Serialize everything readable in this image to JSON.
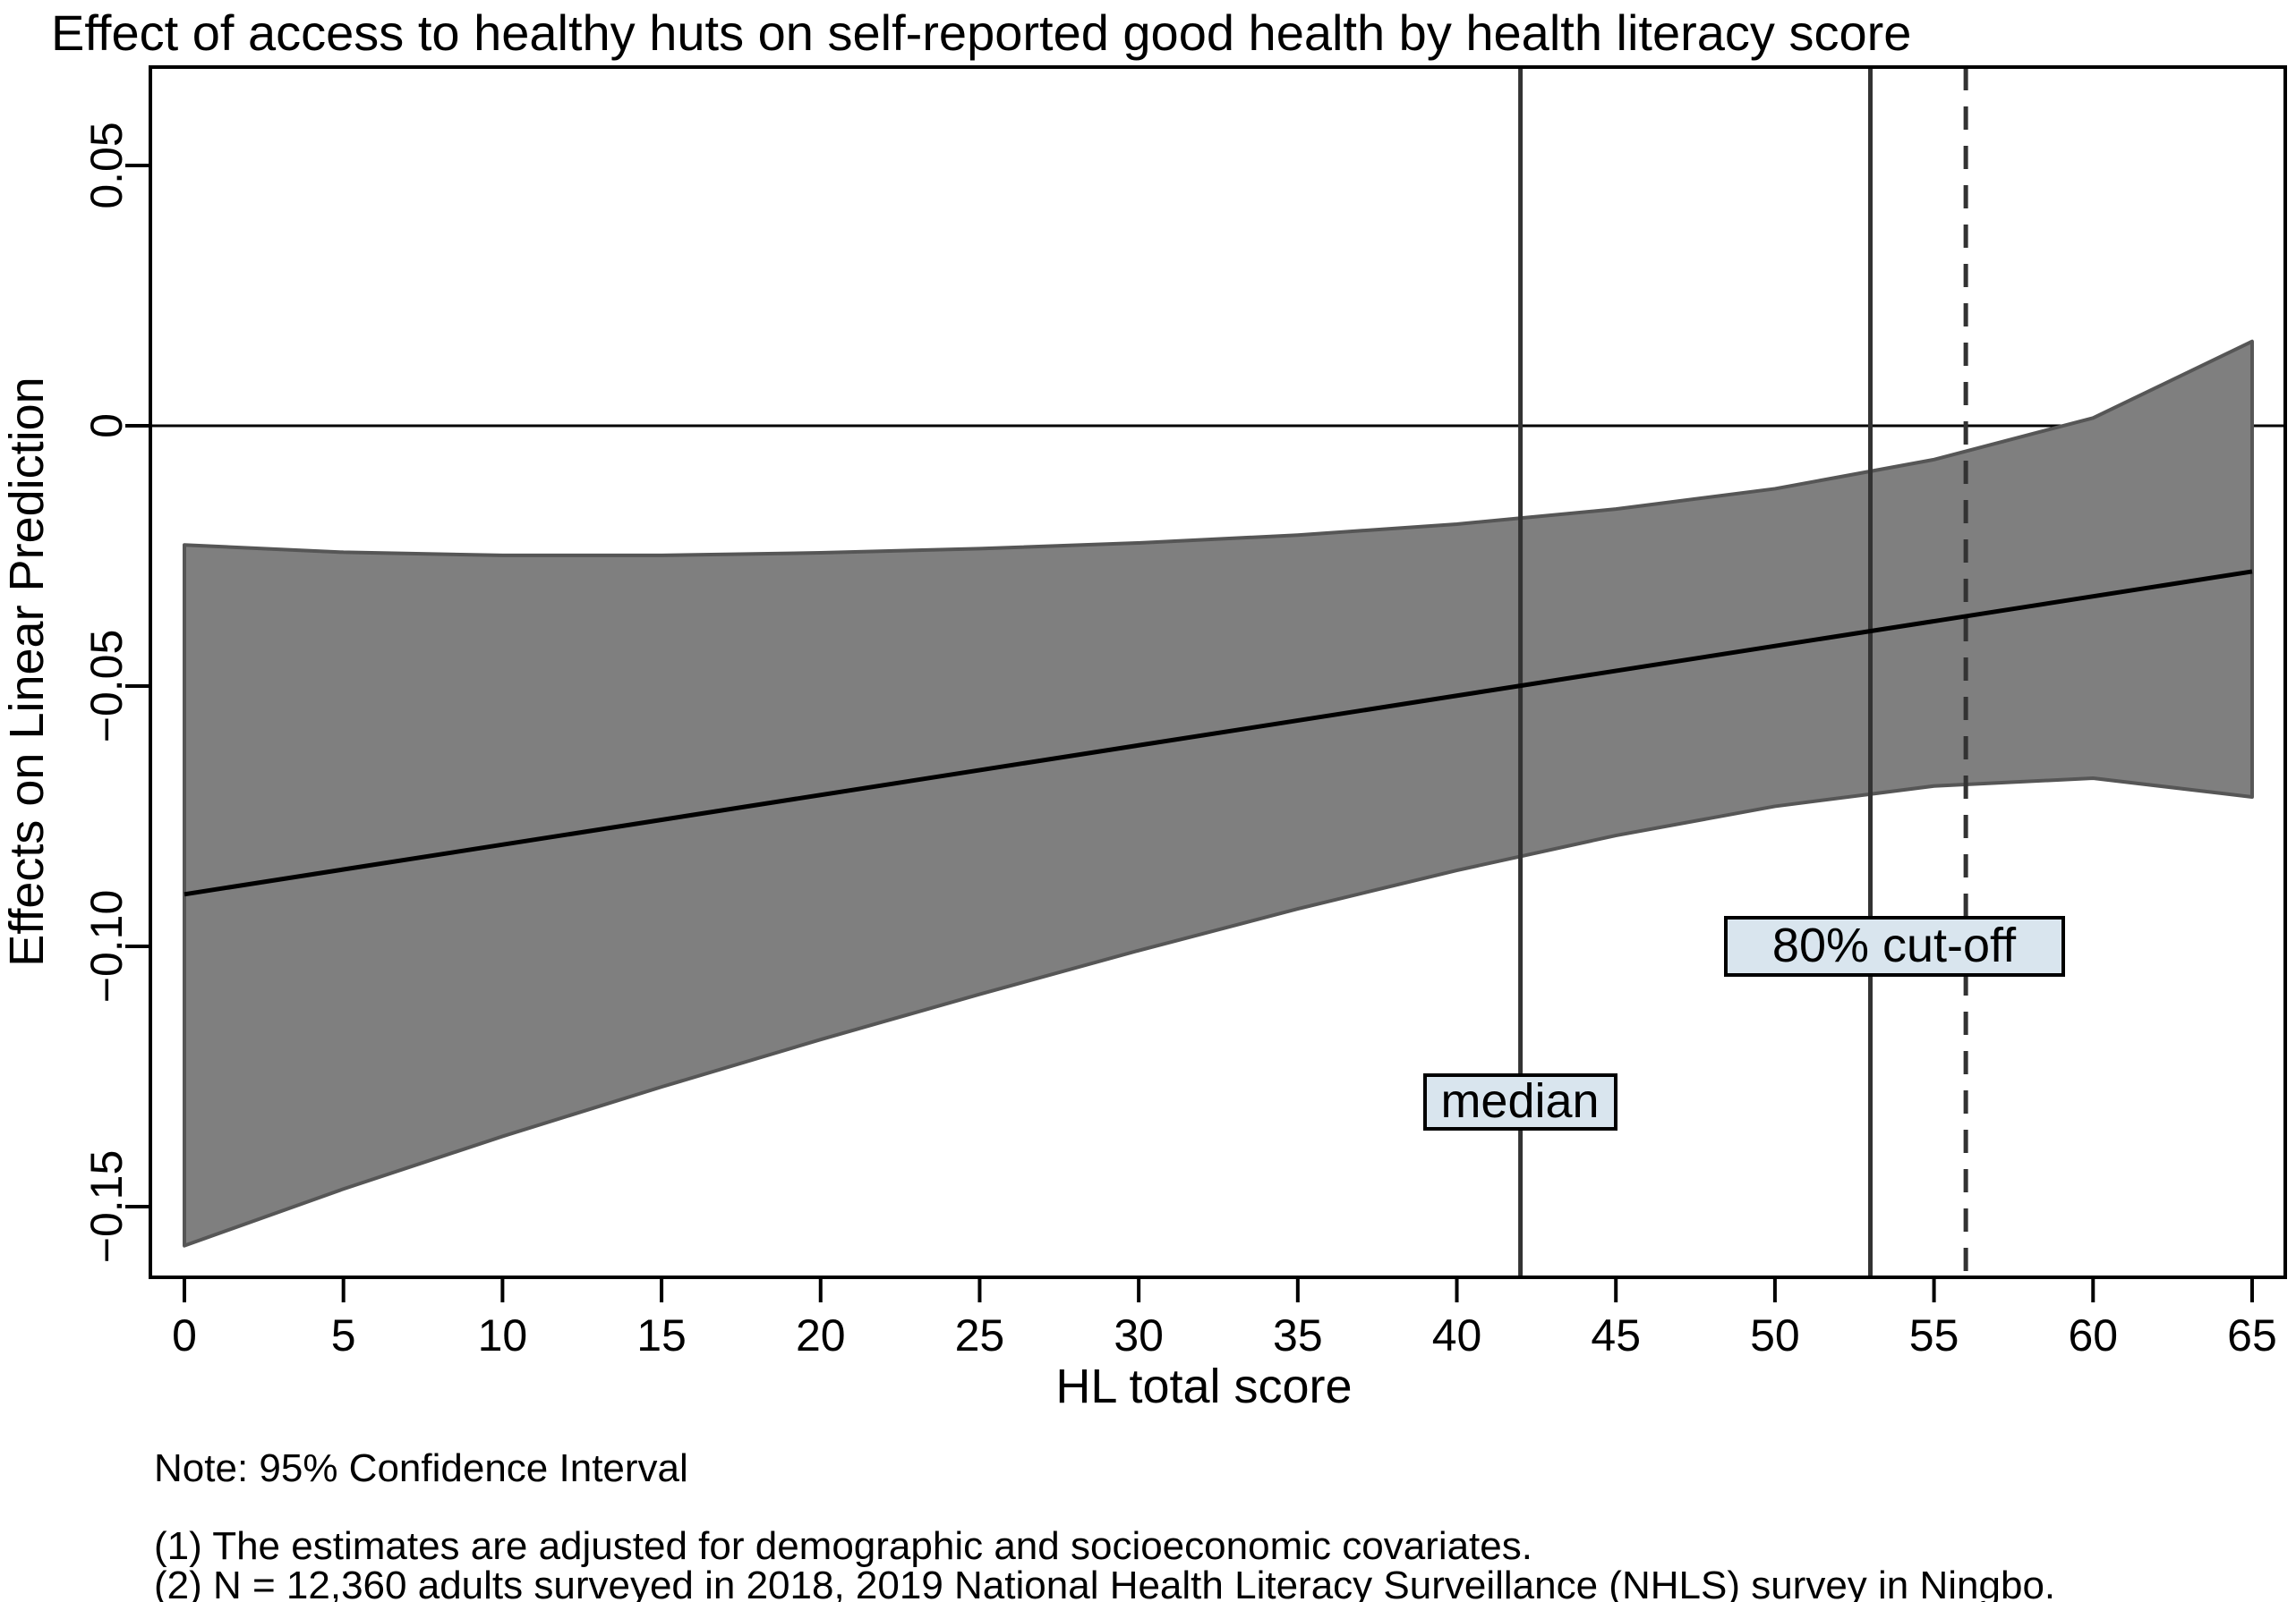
{
  "notes": [
    "Note: 95% Confidence Interval",
    "(1) The estimates are adjusted for demographic and socioeconomic covariates.",
    "(2) N = 12,360 adults surveyed in 2018, 2019 National Health Literacy Surveillance (NHLS) survey in Ningbo."
  ],
  "colors": {
    "band_fill": "#7f7f7f",
    "band_edge": "#565656",
    "effect_line": "#000000",
    "axis": "#000000",
    "zero_line": "#000000",
    "reference_line": "#333333",
    "label_box_fill": "#d9e5ee",
    "label_box_border": "#000000",
    "background": "#ffffff"
  },
  "chart_data": {
    "type": "area",
    "title": "Effect of access to healthy huts on self-reported good health by health literacy score",
    "xlabel": "HL total score",
    "ylabel": "Effects on Linear Prediction",
    "xlim": [
      0,
      65
    ],
    "ylim": [
      -0.164,
      0.069
    ],
    "grid": false,
    "legend": "none",
    "x_ticks": [
      0,
      5,
      10,
      15,
      20,
      25,
      30,
      35,
      40,
      45,
      50,
      55,
      60,
      65
    ],
    "y_ticks": [
      {
        "value": 0.05,
        "label": "0.05"
      },
      {
        "value": 0,
        "label": "0"
      },
      {
        "value": -0.05,
        "label": "−0.05"
      },
      {
        "value": -0.1,
        "label": "−0.10"
      },
      {
        "value": -0.15,
        "label": "−0.15"
      }
    ],
    "series": [
      {
        "name": "95% CI upper bound",
        "x": [
          0,
          5,
          10,
          15,
          20,
          25,
          30,
          35,
          40,
          45,
          50,
          55,
          60,
          65
        ],
        "y": [
          -0.0229,
          -0.0243,
          -0.0249,
          -0.0249,
          -0.0244,
          -0.0236,
          -0.0225,
          -0.021,
          -0.0189,
          -0.016,
          -0.0121,
          -0.0065,
          0.0015,
          0.0162
        ]
      },
      {
        "name": "95% CI lower bound",
        "x": [
          0,
          5,
          10,
          15,
          20,
          25,
          30,
          35,
          40,
          45,
          50,
          55,
          60,
          65
        ],
        "y": [
          -0.1575,
          -0.1466,
          -0.1365,
          -0.127,
          -0.1179,
          -0.1092,
          -0.1008,
          -0.0928,
          -0.0854,
          -0.0787,
          -0.0731,
          -0.0692,
          -0.0677,
          -0.0713
        ]
      },
      {
        "name": "Effect on linear prediction",
        "x": [
          0,
          65
        ],
        "y": [
          -0.09,
          -0.028
        ]
      }
    ],
    "reference_lines": {
      "horizontal": [
        {
          "y": 0,
          "style": "solid"
        }
      ],
      "vertical": [
        {
          "x": 42,
          "style": "solid",
          "label": "median"
        },
        {
          "x": 53,
          "style": "solid",
          "label": "80% cut-off"
        },
        {
          "x": 56,
          "style": "dashed",
          "label": ""
        }
      ]
    }
  }
}
